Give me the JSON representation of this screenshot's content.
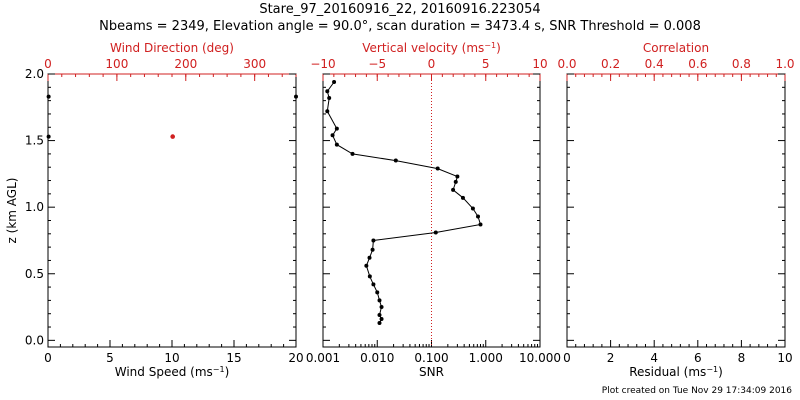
{
  "title_line1": "Stare_97_20160916_22, 20160916.223054",
  "title_line2": "Nbeams = 2349, Elevation angle = 90.0°, scan duration = 3473.4 s, SNR Threshold = 0.008",
  "footer": "Plot created on Tue Nov 29 17:34:09 2016",
  "colors": {
    "axis": "#000000",
    "accent": "#d02020"
  },
  "chart_data": [
    {
      "type": "scatter",
      "top_xlabel": "Wind Direction (deg)",
      "top_ticks": [
        "0",
        "100",
        "200",
        "300"
      ],
      "top_xlim": [
        0,
        360
      ],
      "bottom_xlabel": "Wind Speed (ms",
      "bottom_xlabel_sup": "−1",
      "bottom_xlabel_end": ")",
      "bottom_ticks": [
        "0",
        "5",
        "10",
        "15",
        "20"
      ],
      "xlim": [
        0,
        20
      ],
      "ylabel": "z (km AGL)",
      "y_ticks": [
        "0.0",
        "0.5",
        "1.0",
        "1.5",
        "2.0"
      ],
      "ylim": [
        -0.05,
        2.0
      ],
      "speed_points": [
        {
          "x": 0.05,
          "z": 1.83
        },
        {
          "x": 0.05,
          "z": 1.53
        },
        {
          "x": 20.0,
          "z": 1.83
        }
      ],
      "direction_points": [
        {
          "x": 181,
          "z": 1.53
        }
      ]
    },
    {
      "type": "line",
      "top_xlabel": "Vertical velocity (ms",
      "top_xlabel_sup": "−1",
      "top_xlabel_end": ")",
      "top_ticks": [
        "−10",
        "−5",
        "0",
        "5",
        "10"
      ],
      "top_xlim": [
        -10,
        10
      ],
      "bottom_xlabel": "SNR",
      "bottom_ticks": [
        "0.001",
        "0.010",
        "0.100",
        "1.000",
        "10.000"
      ],
      "xlim": [
        0.001,
        10
      ],
      "xscale": "log",
      "ylim": [
        -0.05,
        2.0
      ],
      "zero_line": 0,
      "series": [
        {
          "points": [
            {
              "x": 0.0016,
              "z": 1.94
            },
            {
              "x": 0.0012,
              "z": 1.87
            },
            {
              "x": 0.0013,
              "z": 1.82
            },
            {
              "x": 0.0012,
              "z": 1.72
            },
            {
              "x": 0.0018,
              "z": 1.59
            },
            {
              "x": 0.0015,
              "z": 1.54
            },
            {
              "x": 0.0018,
              "z": 1.47
            },
            {
              "x": 0.0035,
              "z": 1.4
            },
            {
              "x": 0.022,
              "z": 1.35
            },
            {
              "x": 0.13,
              "z": 1.29
            },
            {
              "x": 0.3,
              "z": 1.23
            },
            {
              "x": 0.28,
              "z": 1.19
            },
            {
              "x": 0.25,
              "z": 1.13
            },
            {
              "x": 0.38,
              "z": 1.07
            },
            {
              "x": 0.58,
              "z": 0.99
            },
            {
              "x": 0.72,
              "z": 0.93
            },
            {
              "x": 0.8,
              "z": 0.87
            },
            {
              "x": 0.12,
              "z": 0.81
            },
            {
              "x": 0.0085,
              "z": 0.75
            },
            {
              "x": 0.0082,
              "z": 0.68
            },
            {
              "x": 0.0072,
              "z": 0.62
            },
            {
              "x": 0.0063,
              "z": 0.56
            },
            {
              "x": 0.0073,
              "z": 0.48
            },
            {
              "x": 0.0085,
              "z": 0.42
            },
            {
              "x": 0.01,
              "z": 0.36
            },
            {
              "x": 0.011,
              "z": 0.3
            },
            {
              "x": 0.012,
              "z": 0.25
            },
            {
              "x": 0.011,
              "z": 0.19
            },
            {
              "x": 0.012,
              "z": 0.16
            },
            {
              "x": 0.011,
              "z": 0.13
            }
          ]
        }
      ]
    },
    {
      "type": "scatter",
      "top_xlabel": "Correlation",
      "top_ticks": [
        "0.0",
        "0.2",
        "0.4",
        "0.6",
        "0.8",
        "1.0"
      ],
      "top_xlim": [
        0,
        1
      ],
      "bottom_xlabel": "Residual (ms",
      "bottom_xlabel_sup": "−1",
      "bottom_xlabel_end": ")",
      "bottom_ticks": [
        "0",
        "2",
        "4",
        "6",
        "8",
        "10"
      ],
      "xlim": [
        0,
        10
      ],
      "ylim": [
        -0.05,
        2.0
      ]
    }
  ]
}
